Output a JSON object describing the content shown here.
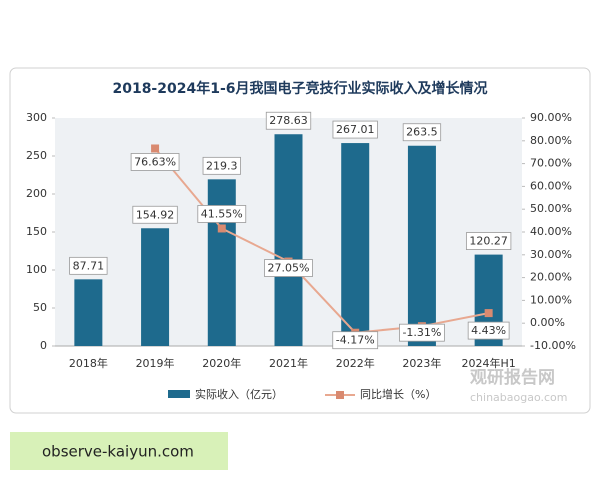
{
  "chart_data": {
    "type": "bar-line",
    "title": "2018-2024年1-6月我国电子竞技行业实际收入及增长情况",
    "categories": [
      "2018年",
      "2019年",
      "2020年",
      "2021年",
      "2022年",
      "2023年",
      "2024年H1"
    ],
    "series": [
      {
        "name": "实际收入（亿元）",
        "type": "bar",
        "color": "#1e6a8d",
        "values": [
          87.71,
          154.92,
          219.3,
          278.63,
          267.01,
          263.5,
          120.27
        ]
      },
      {
        "name": "同比增长（%）",
        "type": "line",
        "axis": "y2",
        "color": "#e8a890",
        "marker_color": "#d98a70",
        "values": [
          null,
          76.63,
          41.55,
          27.05,
          -4.17,
          -1.31,
          4.43
        ],
        "value_labels": [
          null,
          "76.63%",
          "41.55%",
          "27.05%",
          "-4.17%",
          "-1.31%",
          "4.43%"
        ]
      }
    ],
    "ylim": [
      0,
      300
    ],
    "yticks": [
      0,
      50,
      100,
      150,
      200,
      250,
      300
    ],
    "y2lim": [
      -10,
      90
    ],
    "y2ticks": [
      {
        "value": -10,
        "label": "-10.00%"
      },
      {
        "value": 0,
        "label": "0.00%"
      },
      {
        "value": 10,
        "label": "10.00%"
      },
      {
        "value": 20,
        "label": "20.00%"
      },
      {
        "value": 30,
        "label": "30.00%"
      },
      {
        "value": 40,
        "label": "40.00%"
      },
      {
        "value": 50,
        "label": "50.00%"
      },
      {
        "value": 60,
        "label": "60.00%"
      },
      {
        "value": 70,
        "label": "70.00%"
      },
      {
        "value": 80,
        "label": "80.00%"
      },
      {
        "value": 90,
        "label": "90.00%"
      }
    ],
    "watermark": [
      "观研报告网",
      "chinabaogao.com"
    ]
  },
  "banner": "observe-kaiyun.com"
}
